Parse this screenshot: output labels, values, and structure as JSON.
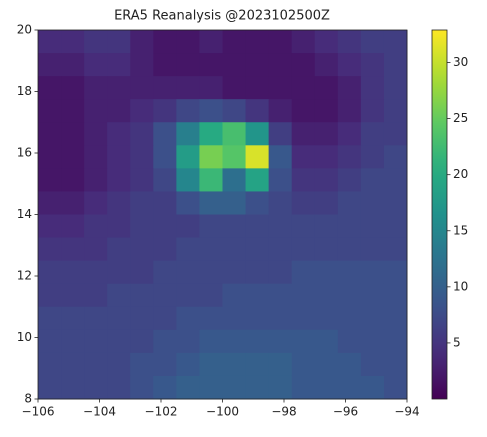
{
  "chart_data": {
    "type": "heatmap",
    "title": "ERA5 Reanalysis @2023102500Z",
    "colormap": "viridis",
    "x": [
      -105.625,
      -104.875,
      -104.125,
      -103.375,
      -102.625,
      -101.875,
      -101.125,
      -100.375,
      -99.625,
      -98.875,
      -98.125,
      -97.375,
      -96.625,
      -95.875,
      -95.125,
      -94.375
    ],
    "y": [
      19.625,
      18.875,
      18.125,
      17.375,
      16.625,
      15.875,
      15.125,
      14.375,
      13.625,
      12.875,
      12.125,
      11.375,
      10.625,
      9.875,
      9.125,
      8.375
    ],
    "z": [
      [
        4,
        4,
        5,
        5,
        3,
        2,
        2,
        3,
        2,
        2,
        2,
        3,
        4,
        5,
        6,
        6
      ],
      [
        3,
        3,
        4,
        4,
        3,
        2,
        2,
        2,
        2,
        2,
        2,
        2,
        3,
        4,
        5,
        6
      ],
      [
        2,
        2,
        3,
        3,
        3,
        3,
        3,
        3,
        2,
        2,
        2,
        2,
        2,
        3,
        5,
        6
      ],
      [
        2,
        2,
        3,
        3,
        4,
        5,
        7,
        8,
        7,
        5,
        3,
        2,
        2,
        3,
        5,
        6
      ],
      [
        2,
        2,
        3,
        4,
        5,
        8,
        14,
        20,
        23,
        17,
        6,
        3,
        3,
        4,
        6,
        6
      ],
      [
        2,
        2,
        3,
        4,
        5,
        8,
        18,
        26,
        24,
        31,
        9,
        4,
        4,
        5,
        6,
        7
      ],
      [
        2,
        2,
        3,
        4,
        5,
        7,
        15,
        22,
        12,
        19,
        8,
        5,
        5,
        6,
        7,
        7
      ],
      [
        3,
        3,
        4,
        5,
        6,
        6,
        8,
        10,
        10,
        8,
        7,
        6,
        6,
        7,
        7,
        7
      ],
      [
        4,
        4,
        5,
        5,
        6,
        6,
        6,
        7,
        7,
        7,
        7,
        7,
        7,
        7,
        7,
        7
      ],
      [
        5,
        5,
        5,
        6,
        6,
        6,
        7,
        7,
        7,
        7,
        7,
        7,
        7,
        7,
        7,
        7
      ],
      [
        6,
        6,
        6,
        6,
        6,
        7,
        7,
        7,
        7,
        7,
        7,
        8,
        8,
        8,
        8,
        8
      ],
      [
        6,
        6,
        6,
        7,
        7,
        7,
        7,
        7,
        8,
        8,
        8,
        8,
        8,
        8,
        8,
        8
      ],
      [
        7,
        7,
        7,
        7,
        7,
        7,
        8,
        8,
        8,
        8,
        8,
        8,
        8,
        8,
        8,
        8
      ],
      [
        7,
        7,
        7,
        7,
        7,
        8,
        8,
        9,
        9,
        9,
        9,
        9,
        9,
        8,
        8,
        8
      ],
      [
        7,
        7,
        7,
        7,
        8,
        8,
        9,
        10,
        10,
        10,
        10,
        9,
        9,
        9,
        8,
        8
      ],
      [
        7,
        7,
        7,
        7,
        8,
        9,
        10,
        10,
        10,
        10,
        10,
        9,
        9,
        9,
        9,
        8
      ]
    ],
    "xlim": [
      -106,
      -94
    ],
    "xticks": [
      {
        "value": -106,
        "label": "−106"
      },
      {
        "value": -104,
        "label": "−104"
      },
      {
        "value": -102,
        "label": "−102"
      },
      {
        "value": -100,
        "label": "−100"
      },
      {
        "value": -98,
        "label": "−98"
      },
      {
        "value": -96,
        "label": "−96"
      },
      {
        "value": -94,
        "label": "−94"
      }
    ],
    "ylim": [
      8,
      20
    ],
    "yticks": [
      8,
      10,
      12,
      14,
      16,
      18,
      20
    ],
    "zlim": [
      0,
      32.9
    ],
    "zticks": [
      5,
      10,
      15,
      20,
      25,
      30
    ]
  }
}
